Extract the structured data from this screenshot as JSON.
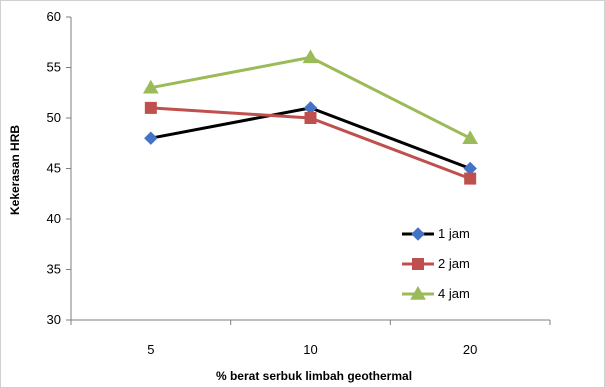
{
  "chart_data": {
    "type": "line",
    "title": "",
    "xlabel": "% berat serbuk limbah geothermal",
    "ylabel": "Kekerasan HRB",
    "categories": [
      "5",
      "10",
      "20"
    ],
    "ylim": [
      30,
      60
    ],
    "yticks": [
      "30",
      "35",
      "40",
      "45",
      "50",
      "55",
      "60"
    ],
    "grid": false,
    "legend_position": "right",
    "series": [
      {
        "name": "1 jam",
        "values": [
          48,
          51,
          45
        ],
        "color": "#000000",
        "marker": "diamond",
        "marker_color": "#4472c4"
      },
      {
        "name": "2 jam",
        "values": [
          51,
          50,
          44
        ],
        "color": "#c0504d",
        "marker": "square",
        "marker_color": "#c0504d"
      },
      {
        "name": "4 jam",
        "values": [
          53,
          56,
          48
        ],
        "color": "#9bbb59",
        "marker": "triangle",
        "marker_color": "#9bbb59"
      }
    ]
  }
}
